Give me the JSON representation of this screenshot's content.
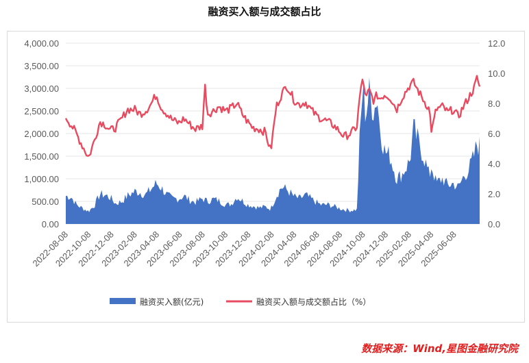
{
  "chart_data": {
    "type": "area+line",
    "title": "融资买入额与成交额占比",
    "source": "数据来源：Wind,星图金融研究院",
    "left_axis": {
      "ticks": [
        "0.00",
        "500.00",
        "1,000.00",
        "1,500.00",
        "2,000.00",
        "2,500.00",
        "3,000.00",
        "3,500.00",
        "4,000.00"
      ],
      "ylim": [
        0,
        4000
      ]
    },
    "right_axis": {
      "ticks": [
        "0.0",
        "2.0",
        "4.0",
        "6.0",
        "8.0",
        "10.0",
        "12.0"
      ],
      "ylim": [
        0,
        12
      ]
    },
    "x_tick_labels": [
      "2022-08-08",
      "2022-10-08",
      "2022-12-08",
      "2023-02-08",
      "2023-04-08",
      "2023-06-08",
      "2023-08-08",
      "2023-10-08",
      "2023-12-08",
      "2024-02-08",
      "2024-04-08",
      "2024-06-08",
      "2024-08-08",
      "2024-10-08",
      "2024-12-08",
      "2025-02-08",
      "2025-04-08",
      "2025-06-08"
    ],
    "x_range": [
      "2022-08-08",
      "2025-08-15"
    ],
    "series": [
      {
        "name": "融资买入额(亿元)",
        "type": "area",
        "axis": "left",
        "color": "#4472c4",
        "points": [
          [
            "2022-08-08",
            620
          ],
          [
            "2022-08-22",
            600
          ],
          [
            "2022-09-05",
            430
          ],
          [
            "2022-09-19",
            360
          ],
          [
            "2022-10-08",
            280
          ],
          [
            "2022-10-24",
            420
          ],
          [
            "2022-11-07",
            660
          ],
          [
            "2022-11-21",
            640
          ],
          [
            "2022-12-05",
            580
          ],
          [
            "2022-12-19",
            450
          ],
          [
            "2023-01-05",
            500
          ],
          [
            "2023-01-19",
            620
          ],
          [
            "2023-02-08",
            720
          ],
          [
            "2023-02-22",
            700
          ],
          [
            "2023-03-08",
            640
          ],
          [
            "2023-03-22",
            760
          ],
          [
            "2023-04-06",
            900
          ],
          [
            "2023-04-20",
            800
          ],
          [
            "2023-05-05",
            640
          ],
          [
            "2023-05-19",
            560
          ],
          [
            "2023-06-05",
            560
          ],
          [
            "2023-06-19",
            620
          ],
          [
            "2023-07-05",
            520
          ],
          [
            "2023-07-19",
            480
          ],
          [
            "2023-08-07",
            560
          ],
          [
            "2023-08-21",
            500
          ],
          [
            "2023-09-05",
            550
          ],
          [
            "2023-09-19",
            520
          ],
          [
            "2023-10-09",
            420
          ],
          [
            "2023-10-23",
            440
          ],
          [
            "2023-11-07",
            600
          ],
          [
            "2023-11-21",
            520
          ],
          [
            "2023-12-05",
            430
          ],
          [
            "2023-12-19",
            400
          ],
          [
            "2024-01-05",
            360
          ],
          [
            "2024-01-22",
            380
          ],
          [
            "2024-02-05",
            330
          ],
          [
            "2024-02-20",
            620
          ],
          [
            "2024-03-05",
            820
          ],
          [
            "2024-03-19",
            760
          ],
          [
            "2024-04-08",
            600
          ],
          [
            "2024-04-22",
            560
          ],
          [
            "2024-05-08",
            640
          ],
          [
            "2024-05-22",
            560
          ],
          [
            "2024-06-05",
            480
          ],
          [
            "2024-06-19",
            420
          ],
          [
            "2024-07-05",
            430
          ],
          [
            "2024-07-19",
            400
          ],
          [
            "2024-08-05",
            350
          ],
          [
            "2024-08-19",
            320
          ],
          [
            "2024-09-05",
            300
          ],
          [
            "2024-09-23",
            320
          ],
          [
            "2024-09-27",
            1500
          ],
          [
            "2024-10-08",
            3100
          ],
          [
            "2024-10-15",
            2400
          ],
          [
            "2024-10-24",
            2900
          ],
          [
            "2024-11-07",
            2500
          ],
          [
            "2024-11-14",
            2900
          ],
          [
            "2024-11-21",
            2200
          ],
          [
            "2024-12-05",
            1600
          ],
          [
            "2024-12-19",
            1500
          ],
          [
            "2025-01-06",
            1000
          ],
          [
            "2025-01-20",
            1100
          ],
          [
            "2025-02-10",
            1400
          ],
          [
            "2025-02-20",
            2100
          ],
          [
            "2025-03-05",
            1800
          ],
          [
            "2025-03-19",
            1500
          ],
          [
            "2025-04-03",
            1050
          ],
          [
            "2025-04-09",
            1300
          ],
          [
            "2025-04-21",
            900
          ],
          [
            "2025-05-08",
            1000
          ],
          [
            "2025-05-22",
            850
          ],
          [
            "2025-06-05",
            900
          ],
          [
            "2025-06-19",
            800
          ],
          [
            "2025-07-03",
            1050
          ],
          [
            "2025-07-17",
            1200
          ],
          [
            "2025-07-31",
            1500
          ],
          [
            "2025-08-08",
            1780
          ],
          [
            "2025-08-15",
            1720
          ]
        ]
      },
      {
        "name": "融资买入额与成交额占比（%）",
        "type": "line",
        "axis": "right",
        "color": "#e84a5f",
        "points": [
          [
            "2022-08-08",
            7.1
          ],
          [
            "2022-08-22",
            6.6
          ],
          [
            "2022-09-05",
            6.0
          ],
          [
            "2022-09-19",
            5.3
          ],
          [
            "2022-10-08",
            4.4
          ],
          [
            "2022-10-24",
            5.6
          ],
          [
            "2022-11-07",
            6.8
          ],
          [
            "2022-11-21",
            6.6
          ],
          [
            "2022-12-05",
            6.2
          ],
          [
            "2022-12-19",
            6.4
          ],
          [
            "2023-01-05",
            7.0
          ],
          [
            "2023-01-19",
            7.6
          ],
          [
            "2023-02-08",
            7.6
          ],
          [
            "2023-02-22",
            7.3
          ],
          [
            "2023-03-08",
            7.5
          ],
          [
            "2023-03-22",
            7.9
          ],
          [
            "2023-04-06",
            8.6
          ],
          [
            "2023-04-20",
            7.7
          ],
          [
            "2023-05-05",
            7.3
          ],
          [
            "2023-05-19",
            6.9
          ],
          [
            "2023-06-05",
            6.7
          ],
          [
            "2023-06-19",
            7.0
          ],
          [
            "2023-07-05",
            6.6
          ],
          [
            "2023-07-19",
            6.3
          ],
          [
            "2023-08-07",
            6.5
          ],
          [
            "2023-08-14",
            9.2
          ],
          [
            "2023-08-21",
            7.3
          ],
          [
            "2023-09-05",
            7.5
          ],
          [
            "2023-09-19",
            7.8
          ],
          [
            "2023-10-09",
            7.5
          ],
          [
            "2023-10-23",
            7.7
          ],
          [
            "2023-11-07",
            8.0
          ],
          [
            "2023-11-21",
            7.3
          ],
          [
            "2023-12-05",
            6.8
          ],
          [
            "2023-12-19",
            6.4
          ],
          [
            "2024-01-05",
            6.3
          ],
          [
            "2024-01-22",
            6.1
          ],
          [
            "2024-02-05",
            4.8
          ],
          [
            "2024-02-20",
            7.8
          ],
          [
            "2024-03-05",
            8.6
          ],
          [
            "2024-03-19",
            9.2
          ],
          [
            "2024-04-08",
            8.2
          ],
          [
            "2024-04-22",
            7.9
          ],
          [
            "2024-05-08",
            8.1
          ],
          [
            "2024-05-22",
            7.6
          ],
          [
            "2024-06-05",
            7.2
          ],
          [
            "2024-06-19",
            7.0
          ],
          [
            "2024-07-05",
            6.8
          ],
          [
            "2024-07-19",
            6.6
          ],
          [
            "2024-08-05",
            6.2
          ],
          [
            "2024-08-19",
            5.8
          ],
          [
            "2024-09-05",
            6.0
          ],
          [
            "2024-09-23",
            6.5
          ],
          [
            "2024-09-27",
            8.0
          ],
          [
            "2024-10-08",
            9.8
          ],
          [
            "2024-10-15",
            8.2
          ],
          [
            "2024-10-24",
            8.9
          ],
          [
            "2024-11-07",
            8.1
          ],
          [
            "2024-11-14",
            8.6
          ],
          [
            "2024-11-21",
            8.3
          ],
          [
            "2024-12-05",
            8.6
          ],
          [
            "2024-12-19",
            8.4
          ],
          [
            "2025-01-06",
            7.6
          ],
          [
            "2025-01-20",
            8.4
          ],
          [
            "2025-02-10",
            9.2
          ],
          [
            "2025-02-20",
            9.4
          ],
          [
            "2025-03-05",
            8.8
          ],
          [
            "2025-03-19",
            8.2
          ],
          [
            "2025-04-03",
            7.6
          ],
          [
            "2025-04-09",
            6.1
          ],
          [
            "2025-04-21",
            7.6
          ],
          [
            "2025-05-08",
            7.8
          ],
          [
            "2025-05-22",
            7.4
          ],
          [
            "2025-06-05",
            7.6
          ],
          [
            "2025-06-19",
            7.1
          ],
          [
            "2025-07-03",
            7.8
          ],
          [
            "2025-07-17",
            8.4
          ],
          [
            "2025-07-31",
            9.0
          ],
          [
            "2025-08-08",
            9.7
          ],
          [
            "2025-08-15",
            9.1
          ]
        ]
      }
    ],
    "legend": {
      "position": "bottom",
      "labels": [
        "融资买入额(亿元)",
        "融资买入额与成交额占比（%）"
      ]
    }
  }
}
